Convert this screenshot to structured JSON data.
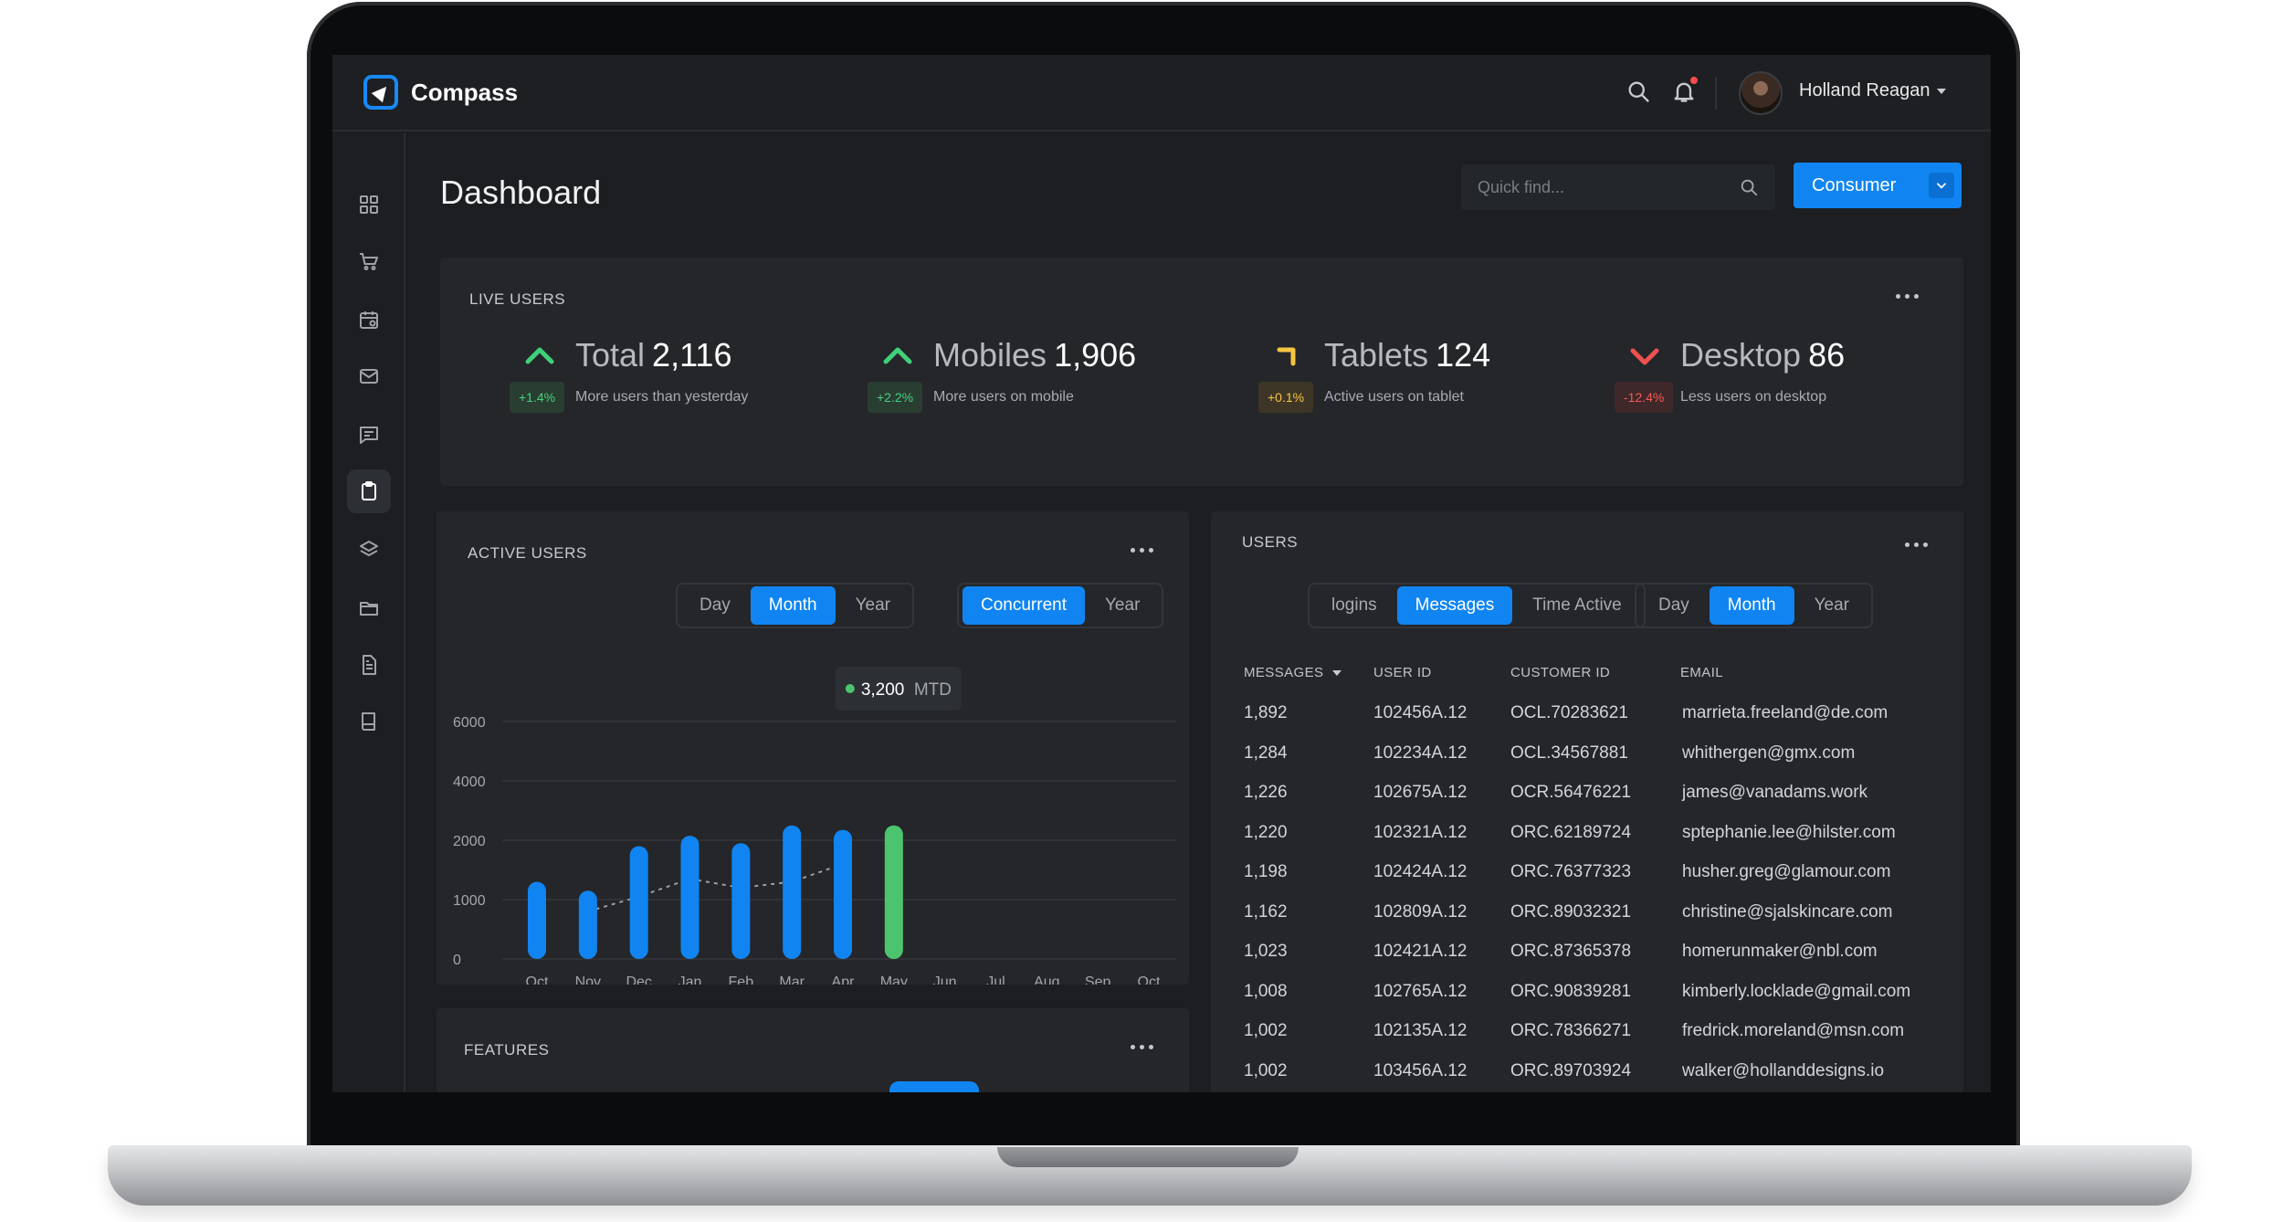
{
  "app": {
    "name": "Compass"
  },
  "user": {
    "name": "Holland Reagan"
  },
  "page": {
    "title": "Dashboard"
  },
  "search": {
    "placeholder": "Quick find..."
  },
  "consumer_button": {
    "label": "Consumer"
  },
  "live_users": {
    "title": "LIVE USERS",
    "stats": [
      {
        "label": "Total",
        "value": "2,116",
        "badge": "+1.4%",
        "desc": "More users than yesterday",
        "trend": "up",
        "color": "#3fd07a"
      },
      {
        "label": "Mobiles",
        "value": "1,906",
        "badge": "+2.2%",
        "desc": "More users on mobile",
        "trend": "up",
        "color": "#3fd07a"
      },
      {
        "label": "Tablets",
        "value": "124",
        "badge": "+0.1%",
        "desc": "Active users on tablet",
        "trend": "flat",
        "color": "#f5c542"
      },
      {
        "label": "Desktop",
        "value": "86",
        "badge": "-12.4%",
        "desc": "Less users on desktop",
        "trend": "down",
        "color": "#f0504f"
      }
    ]
  },
  "active_users": {
    "title": "ACTIVE USERS",
    "period_tabs": [
      "Day",
      "Month",
      "Year"
    ],
    "period_active": "Month",
    "mode_tabs": [
      "Concurrent",
      "Year"
    ],
    "mode_active": "Concurrent",
    "tooltip": {
      "value": "3,200",
      "unit": "MTD"
    }
  },
  "chart_data": {
    "type": "bar",
    "categories": [
      "Oct",
      "Nov",
      "Dec",
      "Jan",
      "Feb",
      "Mar",
      "Apr",
      "May",
      "Jun",
      "Jul",
      "Aug",
      "Sep",
      "Oct"
    ],
    "series": [
      {
        "values": [
          1300,
          1150,
          1900,
          2150,
          1950,
          2500,
          2350,
          2500,
          null,
          null,
          null,
          null,
          null
        ]
      }
    ],
    "trend_line": [
      null,
      800,
      1050,
      1350,
      1200,
      1300,
      1600,
      null,
      null,
      null,
      null,
      null,
      null
    ],
    "highlight_index": 7,
    "yticks": [
      0,
      1000,
      2000,
      4000,
      6000
    ],
    "ylim": [
      0,
      6000
    ],
    "colors": {
      "bar": "#1085f2",
      "highlight": "#4cc46e"
    }
  },
  "users": {
    "title": "USERS",
    "type_tabs": [
      "logins",
      "Messages",
      "Time Active"
    ],
    "type_active": "Messages",
    "period_tabs": [
      "Day",
      "Month",
      "Year"
    ],
    "period_active": "Month",
    "columns": [
      "MESSAGES",
      "USER ID",
      "CUSTOMER ID",
      "EMAIL"
    ],
    "rows": [
      [
        "1,892",
        "102456A.12",
        "OCL.70283621",
        "marrieta.freeland@de.com"
      ],
      [
        "1,284",
        "102234A.12",
        "OCL.34567881",
        "whithergen@gmx.com"
      ],
      [
        "1,226",
        "102675A.12",
        "OCR.56476221",
        "james@vanadams.work"
      ],
      [
        "1,220",
        "102321A.12",
        "ORC.62189724",
        "sptephanie.lee@hilster.com"
      ],
      [
        "1,198",
        "102424A.12",
        "ORC.76377323",
        "husher.greg@glamour.com"
      ],
      [
        "1,162",
        "102809A.12",
        "ORC.89032321",
        "christine@sjalskincare.com"
      ],
      [
        "1,023",
        "102421A.12",
        "ORC.87365378",
        "homerunmaker@nbl.com"
      ],
      [
        "1,008",
        "102765A.12",
        "ORC.90839281",
        "kimberly.locklade@gmail.com"
      ],
      [
        "1,002",
        "102135A.12",
        "ORC.78366271",
        "fredrick.moreland@msn.com"
      ],
      [
        "1,002",
        "103456A.12",
        "ORC.89703924",
        "walker@hollanddesigns.io"
      ]
    ]
  },
  "features": {
    "title": "FEATURES"
  },
  "icons": {
    "sidebar": [
      "grid-icon",
      "cart-icon",
      "calendar-icon",
      "mail-icon",
      "chat-icon",
      "clipboard-icon",
      "layers-icon",
      "folder-icon",
      "document-icon",
      "book-icon"
    ],
    "sidebar_active": "clipboard-icon"
  }
}
